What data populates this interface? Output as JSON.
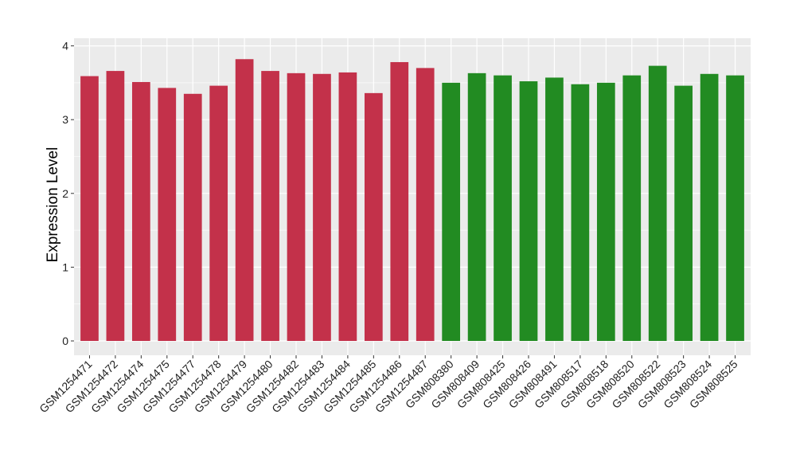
{
  "chart_data": {
    "type": "bar",
    "title": "",
    "xlabel": "",
    "ylabel": "Expression Level",
    "ylim": [
      0,
      4
    ],
    "yticks": [
      "0",
      "1",
      "2",
      "3",
      "4"
    ],
    "grid": true,
    "legend": "none",
    "categories": [
      "GSM1254471",
      "GSM1254472",
      "GSM1254474",
      "GSM1254475",
      "GSM1254477",
      "GSM1254478",
      "GSM1254479",
      "GSM1254480",
      "GSM1254482",
      "GSM1254483",
      "GSM1254484",
      "GSM1254485",
      "GSM1254486",
      "GSM1254487",
      "GSM808380",
      "GSM808409",
      "GSM808425",
      "GSM808426",
      "GSM808491",
      "GSM808517",
      "GSM808518",
      "GSM808520",
      "GSM808522",
      "GSM808523",
      "GSM808524",
      "GSM808525"
    ],
    "values": [
      3.59,
      3.66,
      3.51,
      3.43,
      3.35,
      3.46,
      3.82,
      3.66,
      3.63,
      3.62,
      3.64,
      3.36,
      3.78,
      3.7,
      3.5,
      3.63,
      3.6,
      3.52,
      3.57,
      3.48,
      3.5,
      3.6,
      3.73,
      3.46,
      3.62,
      3.6
    ],
    "groups": [
      "a",
      "a",
      "a",
      "a",
      "a",
      "a",
      "a",
      "a",
      "a",
      "a",
      "a",
      "a",
      "a",
      "a",
      "b",
      "b",
      "b",
      "b",
      "b",
      "b",
      "b",
      "b",
      "b",
      "b",
      "b",
      "b"
    ],
    "colors": {
      "a": "#C3314A",
      "b": "#228B22"
    }
  }
}
